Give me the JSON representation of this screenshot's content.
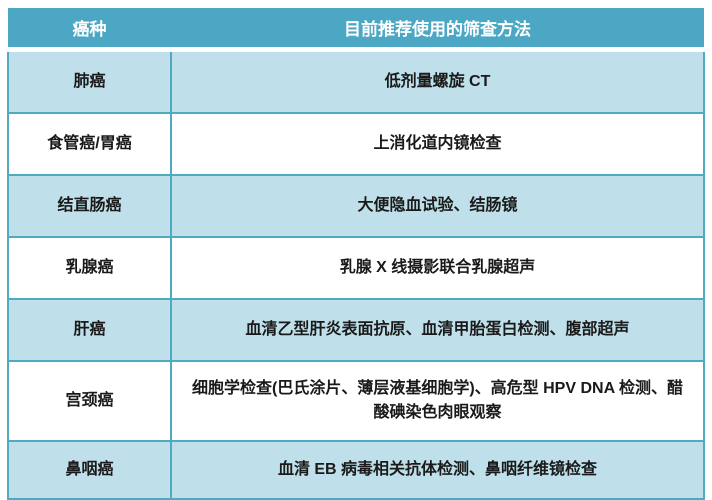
{
  "table": {
    "header": {
      "cancer_type": "癌种",
      "screening_method": "目前推荐使用的筛查方法"
    },
    "rows": [
      {
        "cancer": "肺癌",
        "method": "低剂量螺旋 CT"
      },
      {
        "cancer": "食管癌/胃癌",
        "method": "上消化道内镜检查"
      },
      {
        "cancer": "结直肠癌",
        "method": "大便隐血试验、结肠镜"
      },
      {
        "cancer": "乳腺癌",
        "method": "乳腺 X 线摄影联合乳腺超声"
      },
      {
        "cancer": "肝癌",
        "method": "血清乙型肝炎表面抗原、血清甲胎蛋白检测、腹部超声"
      },
      {
        "cancer": "宫颈癌",
        "method": "细胞学检查(巴氏涂片、薄层液基细胞学)、高危型 HPV DNA 检测、醋酸碘染色肉眼观察"
      },
      {
        "cancer": "鼻咽癌",
        "method": "血清 EB 病毒相关抗体检测、鼻咽纤维镜检查"
      }
    ]
  },
  "colors": {
    "header_bg": "#4BA7C3",
    "header_text": "#FFFFFF",
    "row_alt_bg": "#BFE0EA",
    "row_bg": "#FFFFFF",
    "border": "#4FA9C0",
    "body_text": "#1A1A1A"
  }
}
